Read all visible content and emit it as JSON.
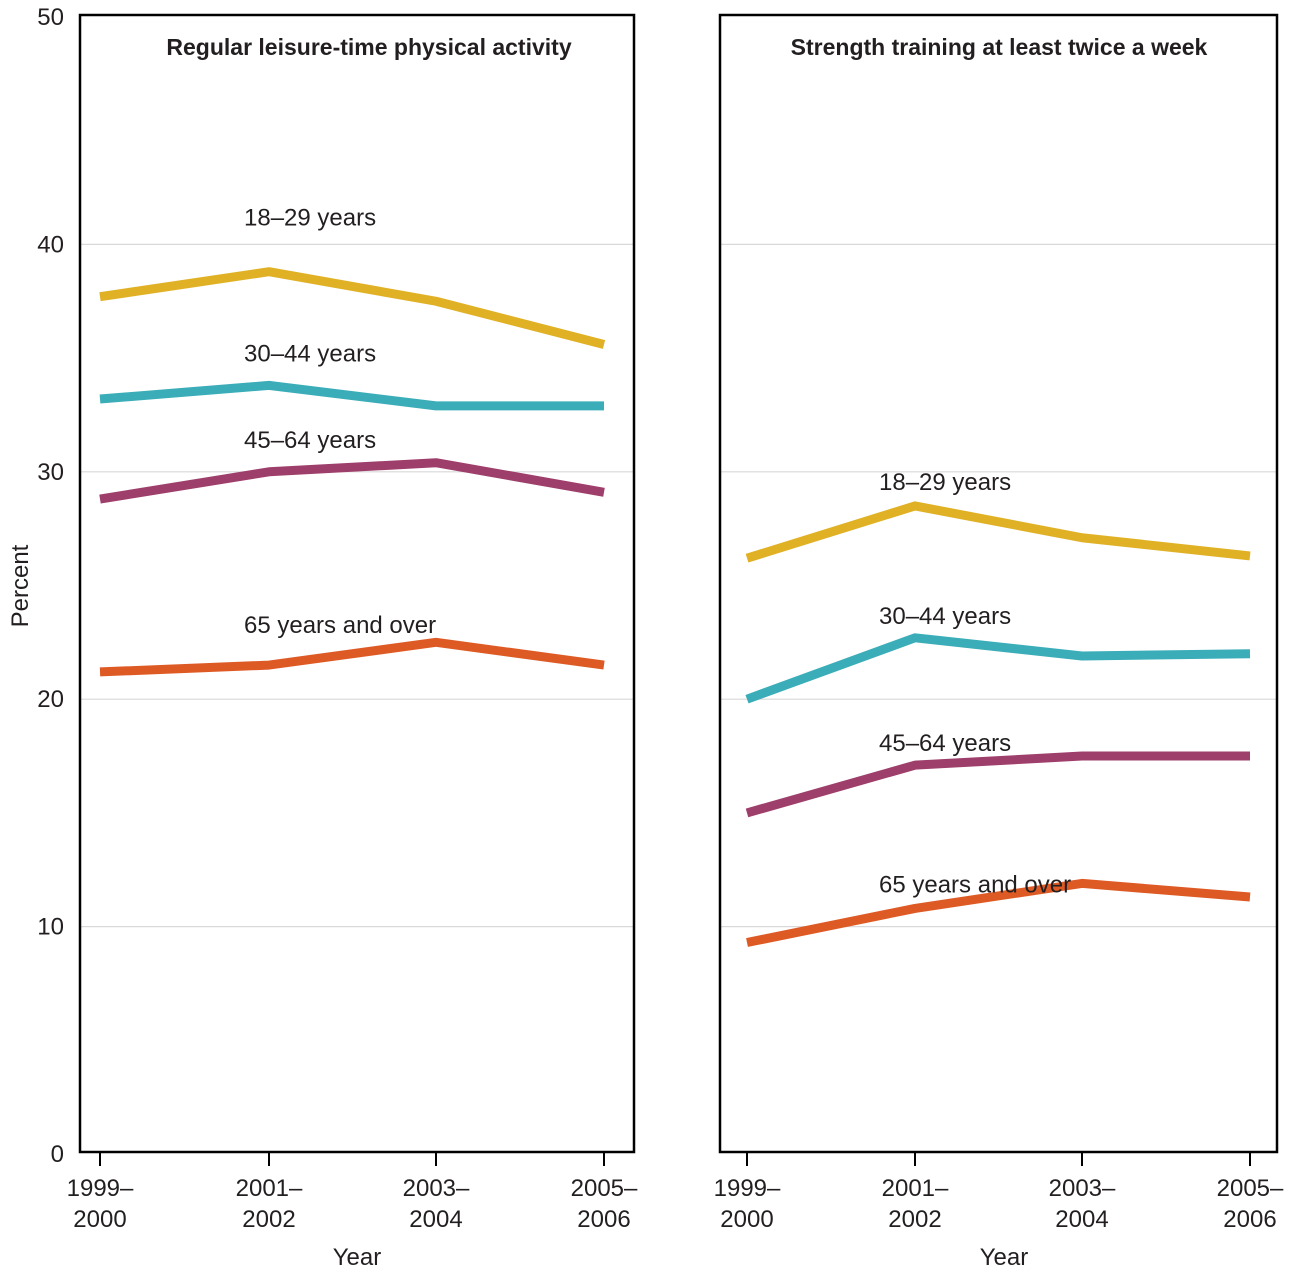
{
  "chart_data": {
    "type": "line",
    "ylabel": "Percent",
    "xlabel": "Year",
    "ylim": [
      0,
      50
    ],
    "yticks": [
      0,
      10,
      20,
      30,
      40,
      50
    ],
    "grid": true,
    "categories": [
      [
        "1999–",
        "2000"
      ],
      [
        "2001–",
        "2002"
      ],
      [
        "2003–",
        "2004"
      ],
      [
        "2005–",
        "2006"
      ]
    ],
    "panels": [
      {
        "title": "Regular leisure-time physical activity",
        "series": [
          {
            "name": "18–29 years",
            "color": "#e0b125",
            "values": [
              37.7,
              38.8,
              37.5,
              35.6
            ]
          },
          {
            "name": "30–44 years",
            "color": "#3aadb8",
            "values": [
              33.2,
              33.8,
              32.9,
              32.9
            ]
          },
          {
            "name": "45–64 years",
            "color": "#9e3e6b",
            "values": [
              28.8,
              30.0,
              30.4,
              29.1
            ]
          },
          {
            "name": "65 years and over",
            "color": "#de5a25",
            "values": [
              21.2,
              21.5,
              22.5,
              21.5
            ]
          }
        ]
      },
      {
        "title": "Strength training at least twice a week",
        "series": [
          {
            "name": "18–29 years",
            "color": "#e0b125",
            "values": [
              26.2,
              28.5,
              27.1,
              26.3
            ]
          },
          {
            "name": "30–44 years",
            "color": "#3aadb8",
            "values": [
              20.0,
              22.7,
              21.9,
              22.0
            ]
          },
          {
            "name": "45–64 years",
            "color": "#9e3e6b",
            "values": [
              15.0,
              17.1,
              17.5,
              17.5
            ]
          },
          {
            "name": "65 years and over",
            "color": "#de5a25",
            "values": [
              9.3,
              10.8,
              11.9,
              11.3
            ]
          }
        ]
      }
    ]
  }
}
